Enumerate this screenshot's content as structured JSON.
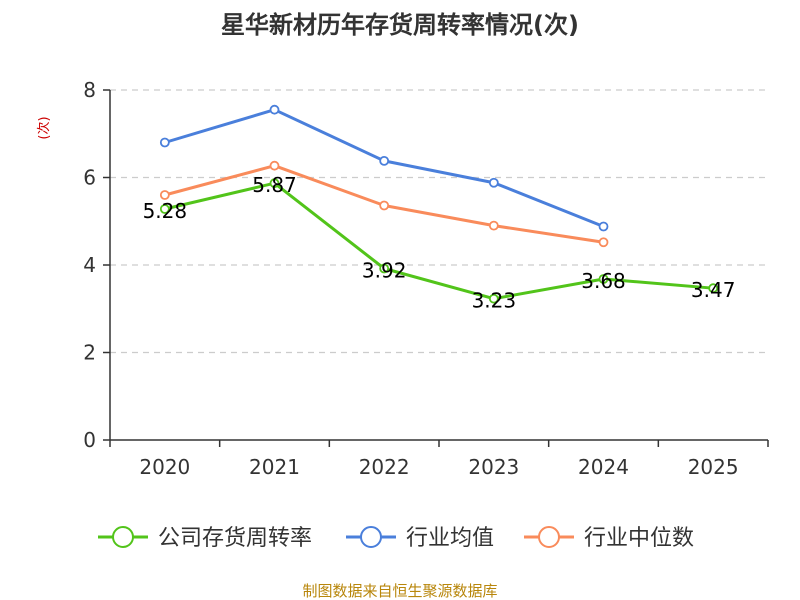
{
  "chart_data": {
    "type": "line",
    "title": "星华新材历年存货周转率情况(次)",
    "ylabel": "(次)",
    "xlabel": "",
    "categories": [
      "2020",
      "2021",
      "2022",
      "2023",
      "2024",
      "2025"
    ],
    "ylim": [
      0,
      8
    ],
    "yticks": [
      0,
      2,
      4,
      6,
      8
    ],
    "grid": true,
    "legend_position": "bottom",
    "series": [
      {
        "name": "公司存货周转率",
        "color": "#52c41a",
        "values": [
          5.28,
          5.87,
          3.92,
          3.23,
          3.68,
          3.47
        ],
        "labels": [
          "5.28",
          "5.87",
          "3.92",
          "3.23",
          "3.68",
          "3.47"
        ]
      },
      {
        "name": "行业均值",
        "color": "#4a7fdb",
        "values": [
          6.8,
          7.55,
          6.38,
          5.88,
          4.88,
          null
        ]
      },
      {
        "name": "行业中位数",
        "color": "#f98b5b",
        "values": [
          5.6,
          6.27,
          5.36,
          4.9,
          4.52,
          null
        ]
      }
    ]
  },
  "footer": "制图数据来自恒生聚源数据库"
}
